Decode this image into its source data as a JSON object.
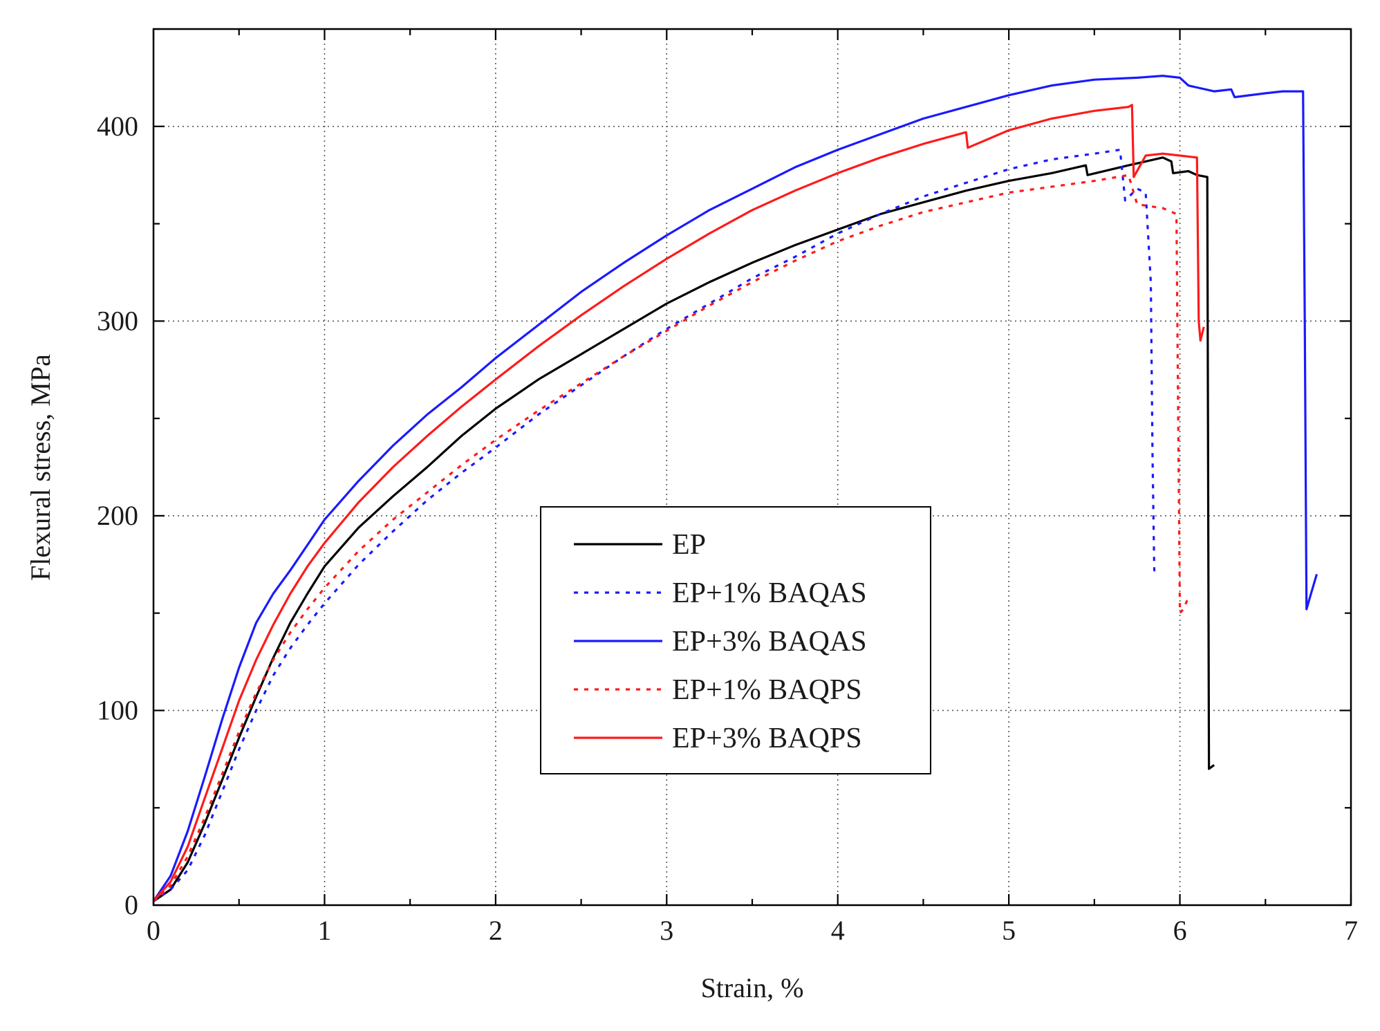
{
  "chart_data": {
    "type": "line",
    "title": "",
    "xlabel": "Strain, %",
    "ylabel": "Flexural stress, MPa",
    "xlim": [
      0,
      7
    ],
    "ylim": [
      0,
      450
    ],
    "x_ticks": [
      0,
      1,
      2,
      3,
      4,
      5,
      6,
      7
    ],
    "y_ticks": [
      0,
      100,
      200,
      300,
      400
    ],
    "x_tick_labels": [
      "0",
      "1",
      "2",
      "3",
      "4",
      "5",
      "6",
      "7"
    ],
    "y_tick_labels": [
      "0",
      "100",
      "200",
      "300",
      "400"
    ],
    "grid": true,
    "legend_position": "center",
    "series": [
      {
        "name": "EP",
        "color": "#000000",
        "style": "solid",
        "points": [
          [
            0,
            2
          ],
          [
            0.1,
            8
          ],
          [
            0.2,
            22
          ],
          [
            0.3,
            42
          ],
          [
            0.4,
            64
          ],
          [
            0.5,
            86
          ],
          [
            0.6,
            107
          ],
          [
            0.7,
            127
          ],
          [
            0.8,
            145
          ],
          [
            0.9,
            160
          ],
          [
            1.0,
            174
          ],
          [
            1.2,
            194
          ],
          [
            1.4,
            210
          ],
          [
            1.6,
            225
          ],
          [
            1.8,
            241
          ],
          [
            2.0,
            255
          ],
          [
            2.25,
            270
          ],
          [
            2.5,
            283
          ],
          [
            2.75,
            296
          ],
          [
            3.0,
            309
          ],
          [
            3.25,
            320
          ],
          [
            3.5,
            330
          ],
          [
            3.75,
            339
          ],
          [
            4.0,
            347
          ],
          [
            4.25,
            355
          ],
          [
            4.5,
            361
          ],
          [
            4.75,
            367
          ],
          [
            5.0,
            372
          ],
          [
            5.25,
            376
          ],
          [
            5.45,
            380
          ],
          [
            5.46,
            375
          ],
          [
            5.7,
            380
          ],
          [
            5.9,
            384
          ],
          [
            5.95,
            382
          ],
          [
            5.96,
            376
          ],
          [
            6.05,
            377
          ],
          [
            6.1,
            375
          ],
          [
            6.16,
            374
          ],
          [
            6.17,
            70
          ],
          [
            6.2,
            72
          ]
        ]
      },
      {
        "name": "EP+1% BAQAS",
        "color": "#1a1aff",
        "style": "dotted",
        "points": [
          [
            0,
            2
          ],
          [
            0.1,
            8
          ],
          [
            0.2,
            18
          ],
          [
            0.3,
            36
          ],
          [
            0.4,
            58
          ],
          [
            0.5,
            80
          ],
          [
            0.6,
            100
          ],
          [
            0.7,
            118
          ],
          [
            0.8,
            132
          ],
          [
            0.9,
            144
          ],
          [
            1.0,
            155
          ],
          [
            1.2,
            175
          ],
          [
            1.4,
            192
          ],
          [
            1.6,
            208
          ],
          [
            1.8,
            222
          ],
          [
            2.0,
            235
          ],
          [
            2.25,
            252
          ],
          [
            2.5,
            267
          ],
          [
            2.75,
            282
          ],
          [
            3.0,
            296
          ],
          [
            3.25,
            309
          ],
          [
            3.5,
            322
          ],
          [
            3.75,
            333
          ],
          [
            4.0,
            345
          ],
          [
            4.25,
            355
          ],
          [
            4.5,
            364
          ],
          [
            4.75,
            371
          ],
          [
            5.0,
            378
          ],
          [
            5.25,
            383
          ],
          [
            5.5,
            386
          ],
          [
            5.65,
            388
          ],
          [
            5.68,
            362
          ],
          [
            5.75,
            368
          ],
          [
            5.8,
            366
          ],
          [
            5.83,
            320
          ],
          [
            5.84,
            230
          ],
          [
            5.85,
            172
          ],
          [
            5.88,
            170
          ]
        ]
      },
      {
        "name": "EP+3% BAQAS",
        "color": "#1a1aff",
        "style": "solid",
        "points": [
          [
            0,
            2
          ],
          [
            0.1,
            15
          ],
          [
            0.2,
            38
          ],
          [
            0.3,
            66
          ],
          [
            0.4,
            95
          ],
          [
            0.5,
            122
          ],
          [
            0.6,
            145
          ],
          [
            0.7,
            160
          ],
          [
            0.8,
            172
          ],
          [
            0.9,
            185
          ],
          [
            1.0,
            198
          ],
          [
            1.2,
            218
          ],
          [
            1.4,
            236
          ],
          [
            1.6,
            252
          ],
          [
            1.8,
            266
          ],
          [
            2.0,
            281
          ],
          [
            2.25,
            298
          ],
          [
            2.5,
            315
          ],
          [
            2.75,
            330
          ],
          [
            3.0,
            344
          ],
          [
            3.25,
            357
          ],
          [
            3.5,
            368
          ],
          [
            3.75,
            379
          ],
          [
            4.0,
            388
          ],
          [
            4.25,
            396
          ],
          [
            4.5,
            404
          ],
          [
            4.75,
            410
          ],
          [
            5.0,
            416
          ],
          [
            5.25,
            421
          ],
          [
            5.5,
            424
          ],
          [
            5.75,
            425
          ],
          [
            5.9,
            426
          ],
          [
            6.0,
            425
          ],
          [
            6.05,
            421
          ],
          [
            6.1,
            420
          ],
          [
            6.2,
            418
          ],
          [
            6.3,
            419
          ],
          [
            6.32,
            415
          ],
          [
            6.5,
            417
          ],
          [
            6.6,
            418
          ],
          [
            6.72,
            418
          ],
          [
            6.73,
            300
          ],
          [
            6.74,
            152
          ],
          [
            6.76,
            158
          ],
          [
            6.8,
            170
          ]
        ]
      },
      {
        "name": "EP+1% BAQPS",
        "color": "#ff1a1a",
        "style": "dotted",
        "points": [
          [
            0,
            2
          ],
          [
            0.1,
            10
          ],
          [
            0.2,
            25
          ],
          [
            0.3,
            45
          ],
          [
            0.4,
            67
          ],
          [
            0.5,
            89
          ],
          [
            0.6,
            109
          ],
          [
            0.7,
            126
          ],
          [
            0.8,
            140
          ],
          [
            0.9,
            152
          ],
          [
            1.0,
            163
          ],
          [
            1.2,
            182
          ],
          [
            1.4,
            198
          ],
          [
            1.6,
            212
          ],
          [
            1.8,
            226
          ],
          [
            2.0,
            239
          ],
          [
            2.25,
            254
          ],
          [
            2.5,
            268
          ],
          [
            2.75,
            282
          ],
          [
            3.0,
            295
          ],
          [
            3.25,
            308
          ],
          [
            3.5,
            320
          ],
          [
            3.75,
            331
          ],
          [
            4.0,
            341
          ],
          [
            4.25,
            349
          ],
          [
            4.5,
            356
          ],
          [
            4.75,
            361
          ],
          [
            5.0,
            366
          ],
          [
            5.25,
            369
          ],
          [
            5.5,
            372
          ],
          [
            5.7,
            375
          ],
          [
            5.75,
            360
          ],
          [
            5.9,
            358
          ],
          [
            5.98,
            355
          ],
          [
            5.99,
            250
          ],
          [
            6.0,
            150
          ],
          [
            6.02,
            152
          ],
          [
            6.05,
            158
          ]
        ]
      },
      {
        "name": "EP+3% BAQPS",
        "color": "#ff1a1a",
        "style": "solid",
        "points": [
          [
            0,
            2
          ],
          [
            0.1,
            12
          ],
          [
            0.2,
            30
          ],
          [
            0.3,
            55
          ],
          [
            0.4,
            80
          ],
          [
            0.5,
            105
          ],
          [
            0.6,
            126
          ],
          [
            0.7,
            144
          ],
          [
            0.8,
            160
          ],
          [
            0.9,
            174
          ],
          [
            1.0,
            186
          ],
          [
            1.2,
            207
          ],
          [
            1.4,
            225
          ],
          [
            1.6,
            241
          ],
          [
            1.8,
            256
          ],
          [
            2.0,
            270
          ],
          [
            2.25,
            287
          ],
          [
            2.5,
            303
          ],
          [
            2.75,
            318
          ],
          [
            3.0,
            332
          ],
          [
            3.25,
            345
          ],
          [
            3.5,
            357
          ],
          [
            3.75,
            367
          ],
          [
            4.0,
            376
          ],
          [
            4.25,
            384
          ],
          [
            4.5,
            391
          ],
          [
            4.75,
            397
          ],
          [
            4.76,
            389
          ],
          [
            5.0,
            398
          ],
          [
            5.25,
            404
          ],
          [
            5.5,
            408
          ],
          [
            5.7,
            410
          ],
          [
            5.72,
            411
          ],
          [
            5.73,
            374
          ],
          [
            5.8,
            385
          ],
          [
            5.9,
            386
          ],
          [
            6.0,
            385
          ],
          [
            6.1,
            384
          ],
          [
            6.11,
            300
          ],
          [
            6.12,
            290
          ],
          [
            6.14,
            297
          ]
        ]
      }
    ]
  }
}
